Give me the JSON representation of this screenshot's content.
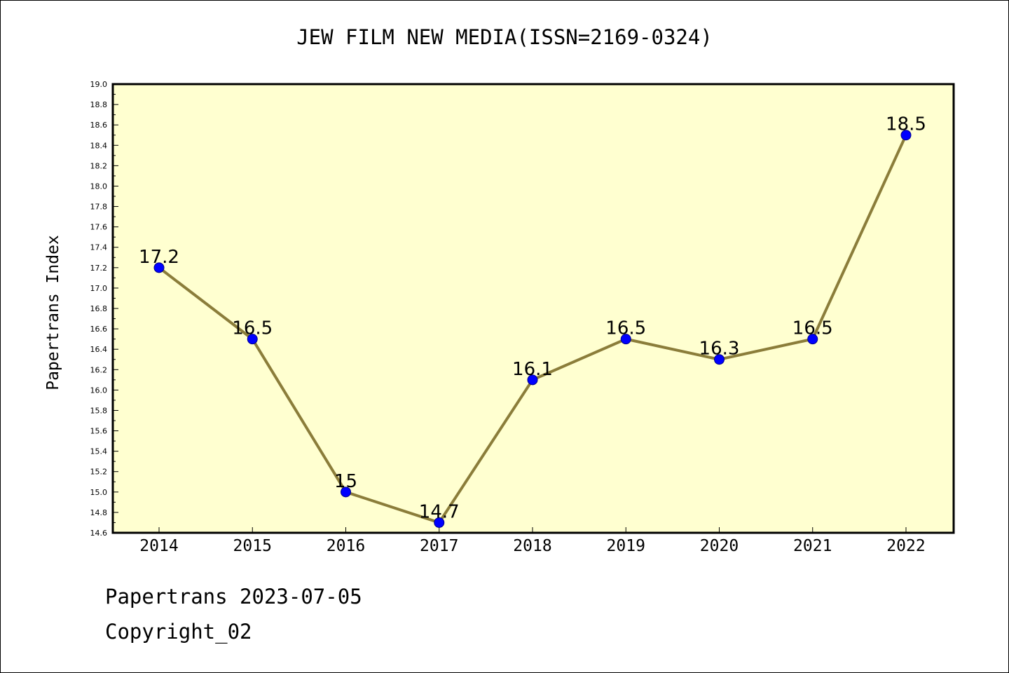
{
  "title": "JEW FILM NEW MEDIA(ISSN=2169-0324)",
  "footer": {
    "date_line": "Papertrans 2023-07-05",
    "copyright": "Copyright_02"
  },
  "colors": {
    "plot_background": "#ffffd0",
    "line": "#8b7d3a",
    "marker": "#0000ff"
  },
  "chart_data": {
    "type": "line",
    "title": "JEW FILM NEW MEDIA(ISSN=2169-0324)",
    "xlabel": "",
    "ylabel": "Papertrans Index",
    "categories": [
      "2014",
      "2015",
      "2016",
      "2017",
      "2018",
      "2019",
      "2020",
      "2021",
      "2022"
    ],
    "series": [
      {
        "values": [
          17.2,
          16.5,
          15.0,
          14.7,
          16.1,
          16.5,
          16.3,
          16.5,
          18.5
        ],
        "labels": [
          "17.2",
          "16.5",
          "15",
          "14.7",
          "16.1",
          "16.5",
          "16.3",
          "16.5",
          "18.5"
        ]
      }
    ],
    "ylim": [
      14.6,
      19.0
    ],
    "yticks": [
      "14.6",
      "14.8",
      "15.0",
      "15.2",
      "15.4",
      "15.6",
      "15.8",
      "16.0",
      "16.2",
      "16.4",
      "16.6",
      "16.8",
      "17.0",
      "17.2",
      "17.4",
      "17.6",
      "17.8",
      "18.0",
      "18.2",
      "18.4",
      "18.6",
      "18.8",
      "19.0"
    ],
    "grid": false,
    "legend": "none"
  }
}
